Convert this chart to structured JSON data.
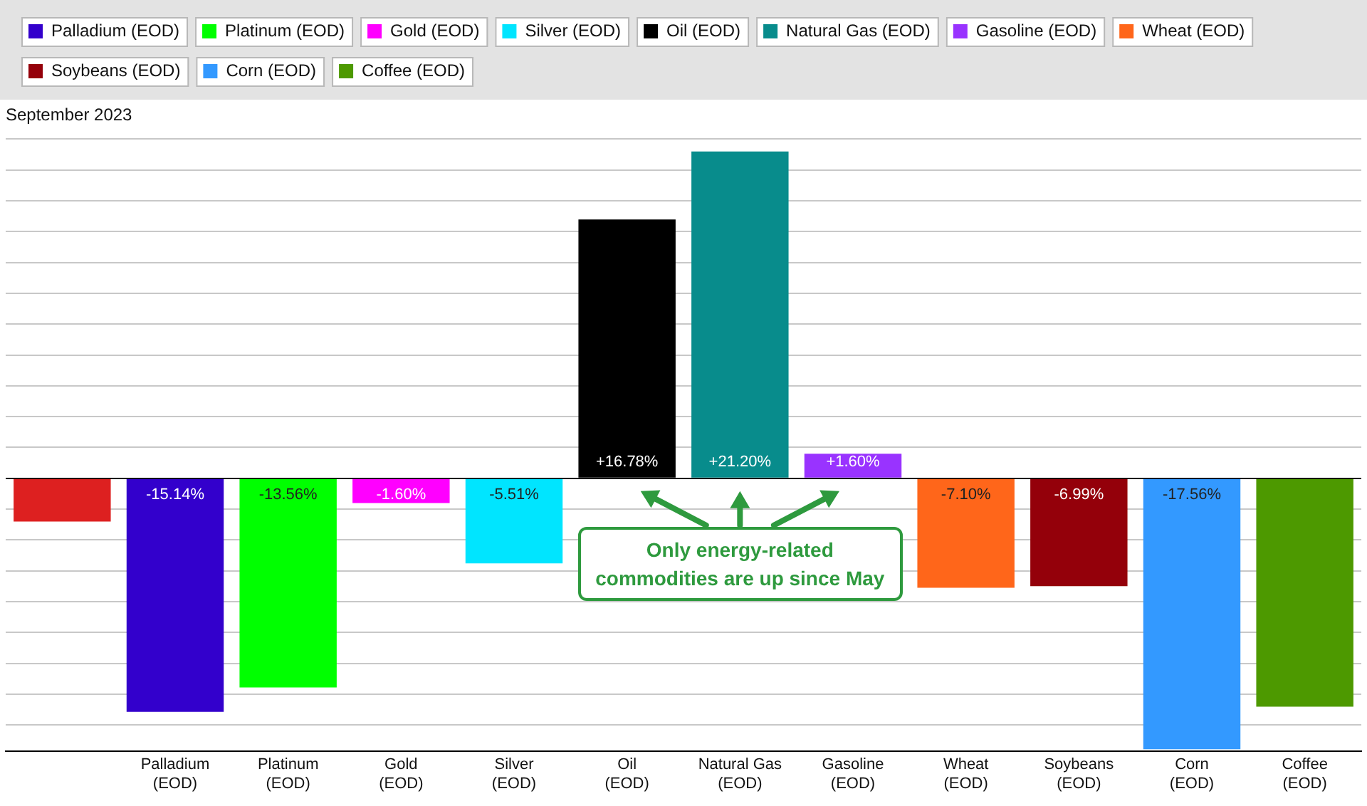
{
  "chart_data": {
    "type": "bar",
    "title": "September 2023",
    "categories": [
      null,
      "Palladium (EOD)",
      "Platinum (EOD)",
      "Gold (EOD)",
      "Silver (EOD)",
      "Oil (EOD)",
      "Natural Gas (EOD)",
      "Gasoline (EOD)",
      "Wheat (EOD)",
      "Soybeans (EOD)",
      "Corn (EOD)",
      "Coffee (EOD)"
    ],
    "series": [
      {
        "color": "#dd2020",
        "values": [
          -2.8,
          null,
          null,
          null,
          null,
          null,
          null,
          null,
          null,
          null,
          null,
          null
        ]
      },
      {
        "name": "Palladium (EOD)",
        "color": "#3300cc",
        "values": [
          null,
          -15.14,
          null,
          null,
          null,
          null,
          null,
          null,
          null,
          null,
          null,
          null
        ],
        "value_labels": [
          null,
          "-15.14%",
          null,
          null,
          null,
          null,
          null,
          null,
          null,
          null,
          null,
          null
        ]
      },
      {
        "name": "Platinum (EOD)",
        "color": "#00ff00",
        "values": [
          null,
          null,
          -13.56,
          null,
          null,
          null,
          null,
          null,
          null,
          null,
          null,
          null
        ],
        "value_labels": [
          null,
          null,
          "-13.56%",
          null,
          null,
          null,
          null,
          null,
          null,
          null,
          null,
          null
        ]
      },
      {
        "name": "Gold (EOD)",
        "color": "#ff00ff",
        "values": [
          null,
          null,
          null,
          -1.6,
          null,
          null,
          null,
          null,
          null,
          null,
          null,
          null
        ],
        "value_labels": [
          null,
          null,
          null,
          "-1.60%",
          null,
          null,
          null,
          null,
          null,
          null,
          null,
          null
        ]
      },
      {
        "name": "Silver (EOD)",
        "color": "#00e5ff",
        "values": [
          null,
          null,
          null,
          null,
          -5.51,
          null,
          null,
          null,
          null,
          null,
          null,
          null
        ],
        "value_labels": [
          null,
          null,
          null,
          null,
          "-5.51%",
          null,
          null,
          null,
          null,
          null,
          null,
          null
        ]
      },
      {
        "name": "Oil (EOD)",
        "color": "#000000",
        "values": [
          null,
          null,
          null,
          null,
          null,
          16.78,
          null,
          null,
          null,
          null,
          null,
          null
        ],
        "value_labels": [
          null,
          null,
          null,
          null,
          null,
          "+16.78%",
          null,
          null,
          null,
          null,
          null,
          null
        ]
      },
      {
        "name": "Natural Gas (EOD)",
        "color": "#088c8c",
        "values": [
          null,
          null,
          null,
          null,
          null,
          null,
          21.2,
          null,
          null,
          null,
          null,
          null
        ],
        "value_labels": [
          null,
          null,
          null,
          null,
          null,
          null,
          "+21.20%",
          null,
          null,
          null,
          null,
          null
        ]
      },
      {
        "name": "Gasoline (EOD)",
        "color": "#9933ff",
        "values": [
          null,
          null,
          null,
          null,
          null,
          null,
          null,
          1.6,
          null,
          null,
          null,
          null
        ],
        "value_labels": [
          null,
          null,
          null,
          null,
          null,
          null,
          null,
          "+1.60%",
          null,
          null,
          null,
          null
        ]
      },
      {
        "name": "Wheat (EOD)",
        "color": "#ff661a",
        "values": [
          null,
          null,
          null,
          null,
          null,
          null,
          null,
          null,
          -7.1,
          null,
          null,
          null
        ],
        "value_labels": [
          null,
          null,
          null,
          null,
          null,
          null,
          null,
          null,
          "-7.10%",
          null,
          null,
          null
        ]
      },
      {
        "name": "Soybeans (EOD)",
        "color": "#94000a",
        "values": [
          null,
          null,
          null,
          null,
          null,
          null,
          null,
          null,
          null,
          -6.99,
          null,
          null
        ],
        "value_labels": [
          null,
          null,
          null,
          null,
          null,
          null,
          null,
          null,
          null,
          "-6.99%",
          null,
          null
        ]
      },
      {
        "name": "Corn (EOD)",
        "color": "#3399ff",
        "values": [
          null,
          null,
          null,
          null,
          null,
          null,
          null,
          null,
          null,
          null,
          -17.56,
          null
        ],
        "value_labels": [
          null,
          null,
          null,
          null,
          null,
          null,
          null,
          null,
          null,
          null,
          "-17.56%",
          null
        ]
      },
      {
        "name": "Coffee (EOD)",
        "color": "#4d9900",
        "values": [
          null,
          null,
          null,
          null,
          null,
          null,
          null,
          null,
          null,
          null,
          null,
          -14.8
        ]
      }
    ],
    "ylim": [
      -17.7,
      22.3
    ],
    "yticks": [
      {
        "value": -16,
        "label": null
      },
      {
        "value": -14,
        "label": null
      },
      {
        "value": -12,
        "label": null
      },
      {
        "value": -10,
        "label": null
      },
      {
        "value": -8,
        "label": null
      },
      {
        "value": -6,
        "label": null
      },
      {
        "value": -4,
        "label": null
      },
      {
        "value": -2,
        "label": null
      },
      {
        "value": 0,
        "label": null
      },
      {
        "value": 2,
        "label": null
      },
      {
        "value": 4,
        "label": null
      },
      {
        "value": 6,
        "label": null
      },
      {
        "value": 8,
        "label": null
      },
      {
        "value": 10,
        "label": null
      },
      {
        "value": 12,
        "label": null
      },
      {
        "value": 14,
        "label": null
      },
      {
        "value": 16,
        "label": null
      },
      {
        "value": 18,
        "label": null
      },
      {
        "value": 20,
        "label": null
      },
      {
        "value": 22,
        "label": null
      }
    ],
    "grid": "y",
    "tick_labels": "x",
    "legend": "top",
    "annotations": [
      "Only energy-related commodities are up since May"
    ]
  }
}
